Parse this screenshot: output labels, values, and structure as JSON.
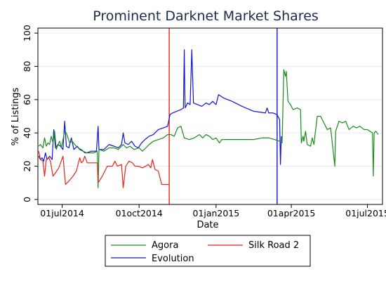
{
  "colors": {
    "agora": "#1a8c1a",
    "silk_road_2": "#e8231c",
    "evolution": "#1414d6",
    "grid": "#eaeaea",
    "title": "#1a2b4c"
  },
  "chart_data": {
    "type": "line",
    "title": "Prominent Darknet Market Shares",
    "xlabel": "Date",
    "ylabel": "% of Listings",
    "x_tick_labels": [
      "01jul2014",
      "01oct2014",
      "01jan2015",
      "01apr2015",
      "01jul2015"
    ],
    "y_ticks": [
      0,
      20,
      40,
      60,
      80,
      100
    ],
    "y_tick_labels": [
      "0",
      "20",
      "40",
      "60",
      "80",
      "100"
    ],
    "ylim": [
      -3,
      103
    ],
    "xlim": [
      "2014-06-02",
      "2015-07-19"
    ],
    "grid": true,
    "legend_position": "bottom",
    "legend": [
      {
        "key": "agora",
        "label": "Agora"
      },
      {
        "key": "silk_road_2",
        "label": "Silk Road 2"
      },
      {
        "key": "evolution",
        "label": "Evolution"
      }
    ],
    "vertical_lines": [
      {
        "date": "2014-11-06",
        "color_key": "silk_road_2"
      },
      {
        "date": "2015-03-15",
        "color_key": "evolution"
      }
    ],
    "series": [
      {
        "key": "agora",
        "name": "Agora",
        "points": [
          [
            "2014-06-03",
            32
          ],
          [
            "2014-06-05",
            33
          ],
          [
            "2014-06-08",
            31
          ],
          [
            "2014-06-10",
            37
          ],
          [
            "2014-06-12",
            32
          ],
          [
            "2014-06-14",
            34
          ],
          [
            "2014-06-16",
            33
          ],
          [
            "2014-06-18",
            38
          ],
          [
            "2014-06-20",
            34
          ],
          [
            "2014-06-22",
            41
          ],
          [
            "2014-06-24",
            30
          ],
          [
            "2014-06-26",
            33
          ],
          [
            "2014-06-28",
            35
          ],
          [
            "2014-06-30",
            31
          ],
          [
            "2014-07-02",
            36
          ],
          [
            "2014-07-04",
            41
          ],
          [
            "2014-07-06",
            40
          ],
          [
            "2014-07-08",
            37
          ],
          [
            "2014-07-10",
            34
          ],
          [
            "2014-07-13",
            35
          ],
          [
            "2014-07-16",
            33
          ],
          [
            "2014-07-20",
            31
          ],
          [
            "2014-07-24",
            30
          ],
          [
            "2014-07-28",
            28
          ],
          [
            "2014-08-02",
            28
          ],
          [
            "2014-08-08",
            28
          ],
          [
            "2014-08-12",
            29
          ],
          [
            "2014-08-13",
            7
          ],
          [
            "2014-08-14",
            30
          ],
          [
            "2014-08-20",
            29
          ],
          [
            "2014-08-26",
            31
          ],
          [
            "2014-09-01",
            31
          ],
          [
            "2014-09-06",
            30
          ],
          [
            "2014-09-12",
            33
          ],
          [
            "2014-09-16",
            31
          ],
          [
            "2014-09-20",
            32
          ],
          [
            "2014-09-25",
            30
          ],
          [
            "2014-10-01",
            31
          ],
          [
            "2014-10-05",
            29
          ],
          [
            "2014-10-09",
            31
          ],
          [
            "2014-10-13",
            33
          ],
          [
            "2014-10-18",
            35
          ],
          [
            "2014-10-24",
            36
          ],
          [
            "2014-10-30",
            37
          ],
          [
            "2014-11-04",
            39
          ],
          [
            "2014-11-08",
            39
          ],
          [
            "2014-11-12",
            38
          ],
          [
            "2014-11-16",
            43
          ],
          [
            "2014-11-20",
            44
          ],
          [
            "2014-11-24",
            37
          ],
          [
            "2014-11-30",
            36
          ],
          [
            "2014-12-06",
            37
          ],
          [
            "2014-12-12",
            39
          ],
          [
            "2014-12-16",
            37
          ],
          [
            "2014-12-20",
            39
          ],
          [
            "2014-12-24",
            38
          ],
          [
            "2014-12-28",
            36
          ],
          [
            "2015-01-01",
            37
          ],
          [
            "2015-01-05",
            34
          ],
          [
            "2015-01-08",
            36
          ],
          [
            "2015-01-15",
            36
          ],
          [
            "2015-02-01",
            36
          ],
          [
            "2015-02-15",
            36
          ],
          [
            "2015-02-25",
            37
          ],
          [
            "2015-03-05",
            37
          ],
          [
            "2015-03-12",
            36
          ],
          [
            "2015-03-18",
            35
          ],
          [
            "2015-03-21",
            34
          ],
          [
            "2015-03-23",
            78
          ],
          [
            "2015-03-25",
            74
          ],
          [
            "2015-03-26",
            77
          ],
          [
            "2015-03-28",
            59
          ],
          [
            "2015-03-31",
            57
          ],
          [
            "2015-04-03",
            54
          ],
          [
            "2015-04-08",
            55
          ],
          [
            "2015-04-12",
            54
          ],
          [
            "2015-04-13",
            34
          ],
          [
            "2015-04-15",
            38
          ],
          [
            "2015-04-16",
            35
          ],
          [
            "2015-04-18",
            41
          ],
          [
            "2015-04-20",
            33
          ],
          [
            "2015-04-24",
            32
          ],
          [
            "2015-04-26",
            37
          ],
          [
            "2015-04-28",
            33
          ],
          [
            "2015-05-02",
            50
          ],
          [
            "2015-05-06",
            50
          ],
          [
            "2015-05-10",
            46
          ],
          [
            "2015-05-14",
            42
          ],
          [
            "2015-05-18",
            43
          ],
          [
            "2015-05-23",
            20
          ],
          [
            "2015-05-24",
            41
          ],
          [
            "2015-05-28",
            47
          ],
          [
            "2015-06-01",
            46
          ],
          [
            "2015-06-05",
            47
          ],
          [
            "2015-06-09",
            42
          ],
          [
            "2015-06-14",
            44
          ],
          [
            "2015-06-18",
            43
          ],
          [
            "2015-06-22",
            44
          ],
          [
            "2015-06-27",
            42
          ],
          [
            "2015-07-01",
            42
          ],
          [
            "2015-07-04",
            41
          ],
          [
            "2015-07-07",
            40
          ],
          [
            "2015-07-08",
            14
          ],
          [
            "2015-07-09",
            40
          ],
          [
            "2015-07-11",
            41
          ],
          [
            "2015-07-14",
            39
          ]
        ]
      },
      {
        "key": "silk_road_2",
        "name": "Silk Road 2",
        "points": [
          [
            "2014-06-03",
            29
          ],
          [
            "2014-06-05",
            24
          ],
          [
            "2014-06-08",
            23
          ],
          [
            "2014-06-10",
            14
          ],
          [
            "2014-06-12",
            24
          ],
          [
            "2014-06-15",
            25
          ],
          [
            "2014-06-17",
            23
          ],
          [
            "2014-06-20",
            14
          ],
          [
            "2014-06-23",
            16
          ],
          [
            "2014-06-27",
            19
          ],
          [
            "2014-07-02",
            26
          ],
          [
            "2014-07-05",
            9
          ],
          [
            "2014-07-09",
            11
          ],
          [
            "2014-07-14",
            14
          ],
          [
            "2014-07-18",
            17
          ],
          [
            "2014-07-22",
            25
          ],
          [
            "2014-07-24",
            22
          ],
          [
            "2014-07-26",
            23
          ],
          [
            "2014-07-28",
            26
          ],
          [
            "2014-07-31",
            22
          ],
          [
            "2014-08-05",
            22
          ],
          [
            "2014-08-12",
            22
          ],
          [
            "2014-08-13",
            10
          ],
          [
            "2014-08-18",
            14
          ],
          [
            "2014-08-24",
            20
          ],
          [
            "2014-08-30",
            20
          ],
          [
            "2014-09-02",
            23
          ],
          [
            "2014-09-05",
            20
          ],
          [
            "2014-09-10",
            21
          ],
          [
            "2014-09-12",
            7
          ],
          [
            "2014-09-15",
            20
          ],
          [
            "2014-09-19",
            23
          ],
          [
            "2014-09-23",
            22
          ],
          [
            "2014-09-26",
            20
          ],
          [
            "2014-09-30",
            20
          ],
          [
            "2014-10-05",
            19
          ],
          [
            "2014-10-09",
            20
          ],
          [
            "2014-10-12",
            21
          ],
          [
            "2014-10-15",
            19
          ],
          [
            "2014-10-17",
            24
          ],
          [
            "2014-10-20",
            18
          ],
          [
            "2014-10-24",
            17
          ],
          [
            "2014-10-28",
            9
          ],
          [
            "2014-11-01",
            9
          ],
          [
            "2014-11-06",
            9
          ]
        ]
      },
      {
        "key": "evolution",
        "name": "Evolution",
        "points": [
          [
            "2014-06-03",
            26
          ],
          [
            "2014-06-05",
            24
          ],
          [
            "2014-06-07",
            25
          ],
          [
            "2014-06-09",
            23
          ],
          [
            "2014-06-11",
            28
          ],
          [
            "2014-06-13",
            24
          ],
          [
            "2014-06-16",
            26
          ],
          [
            "2014-06-19",
            24
          ],
          [
            "2014-06-21",
            42
          ],
          [
            "2014-06-23",
            31
          ],
          [
            "2014-06-26",
            33
          ],
          [
            "2014-06-29",
            32
          ],
          [
            "2014-07-02",
            30
          ],
          [
            "2014-07-04",
            47
          ],
          [
            "2014-07-06",
            32
          ],
          [
            "2014-07-09",
            31
          ],
          [
            "2014-07-12",
            37
          ],
          [
            "2014-07-15",
            30
          ],
          [
            "2014-07-19",
            32
          ],
          [
            "2014-07-22",
            30
          ],
          [
            "2014-07-26",
            29
          ],
          [
            "2014-07-30",
            28
          ],
          [
            "2014-08-05",
            29
          ],
          [
            "2014-08-11",
            29
          ],
          [
            "2014-08-13",
            44
          ],
          [
            "2014-08-14",
            30
          ],
          [
            "2014-08-20",
            30
          ],
          [
            "2014-08-26",
            33
          ],
          [
            "2014-09-01",
            32
          ],
          [
            "2014-09-06",
            31
          ],
          [
            "2014-09-10",
            33
          ],
          [
            "2014-09-12",
            40
          ],
          [
            "2014-09-14",
            34
          ],
          [
            "2014-09-18",
            33
          ],
          [
            "2014-09-22",
            35
          ],
          [
            "2014-09-26",
            32
          ],
          [
            "2014-09-30",
            31
          ],
          [
            "2014-10-04",
            34
          ],
          [
            "2014-10-08",
            36
          ],
          [
            "2014-10-13",
            38
          ],
          [
            "2014-10-18",
            39
          ],
          [
            "2014-10-24",
            42
          ],
          [
            "2014-10-30",
            43
          ],
          [
            "2014-11-04",
            44
          ],
          [
            "2014-11-07",
            51
          ],
          [
            "2014-11-10",
            52
          ],
          [
            "2014-11-15",
            53
          ],
          [
            "2014-11-20",
            54
          ],
          [
            "2014-11-23",
            55
          ],
          [
            "2014-11-24",
            90
          ],
          [
            "2014-11-25",
            55
          ],
          [
            "2014-11-28",
            58
          ],
          [
            "2014-12-01",
            57
          ],
          [
            "2014-12-03",
            90
          ],
          [
            "2014-12-05",
            58
          ],
          [
            "2014-12-10",
            57
          ],
          [
            "2014-12-15",
            56
          ],
          [
            "2014-12-20",
            58
          ],
          [
            "2014-12-24",
            57
          ],
          [
            "2014-12-28",
            59
          ],
          [
            "2015-01-01",
            57
          ],
          [
            "2015-01-04",
            63
          ],
          [
            "2015-01-10",
            61
          ],
          [
            "2015-01-20",
            59
          ],
          [
            "2015-02-01",
            56
          ],
          [
            "2015-02-15",
            53
          ],
          [
            "2015-03-01",
            52
          ],
          [
            "2015-03-03",
            55
          ],
          [
            "2015-03-05",
            52
          ],
          [
            "2015-03-10",
            52
          ],
          [
            "2015-03-15",
            51
          ],
          [
            "2015-03-18",
            48
          ],
          [
            "2015-03-19",
            21
          ],
          [
            "2015-03-20",
            38
          ]
        ]
      }
    ]
  }
}
